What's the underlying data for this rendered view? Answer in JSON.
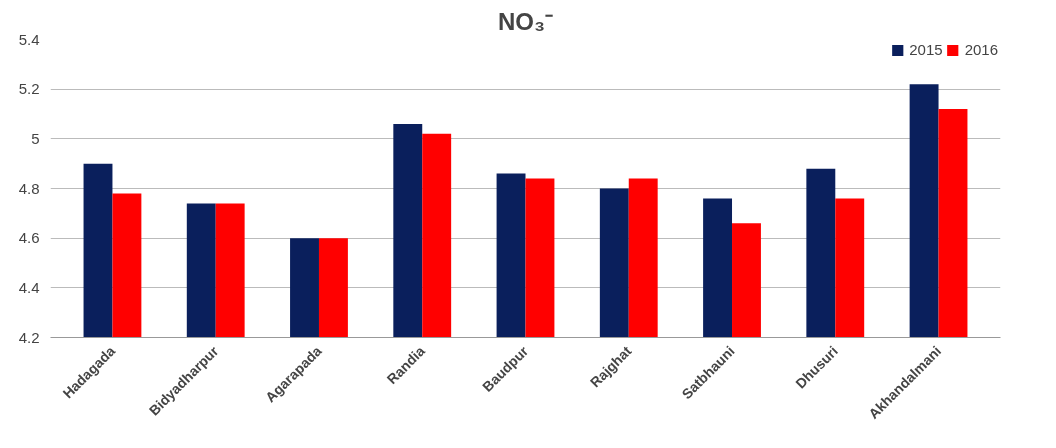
{
  "chart_data": {
    "type": "bar",
    "title": "NO₃⁻",
    "categories": [
      "Hadagada",
      "Bidyadharpur",
      "Agarapada",
      "Randia",
      "Baudpur",
      "Rajghat",
      "Satbhauni",
      "Dhusuri",
      "Akhandalmani"
    ],
    "series": [
      {
        "name": "2015",
        "color": "#0a1f5c",
        "values": [
          4.9,
          4.74,
          4.6,
          5.06,
          4.86,
          4.8,
          4.76,
          4.88,
          5.22
        ]
      },
      {
        "name": "2016",
        "color": "#ff0000",
        "values": [
          4.78,
          4.74,
          4.6,
          5.02,
          4.84,
          4.84,
          4.66,
          4.76,
          5.12
        ]
      }
    ],
    "ylim": [
      4.2,
      5.4
    ],
    "yticks": [
      4.2,
      4.4,
      4.6,
      4.8,
      5,
      5.2,
      5.4
    ],
    "grid": "y",
    "legend": "top right"
  }
}
